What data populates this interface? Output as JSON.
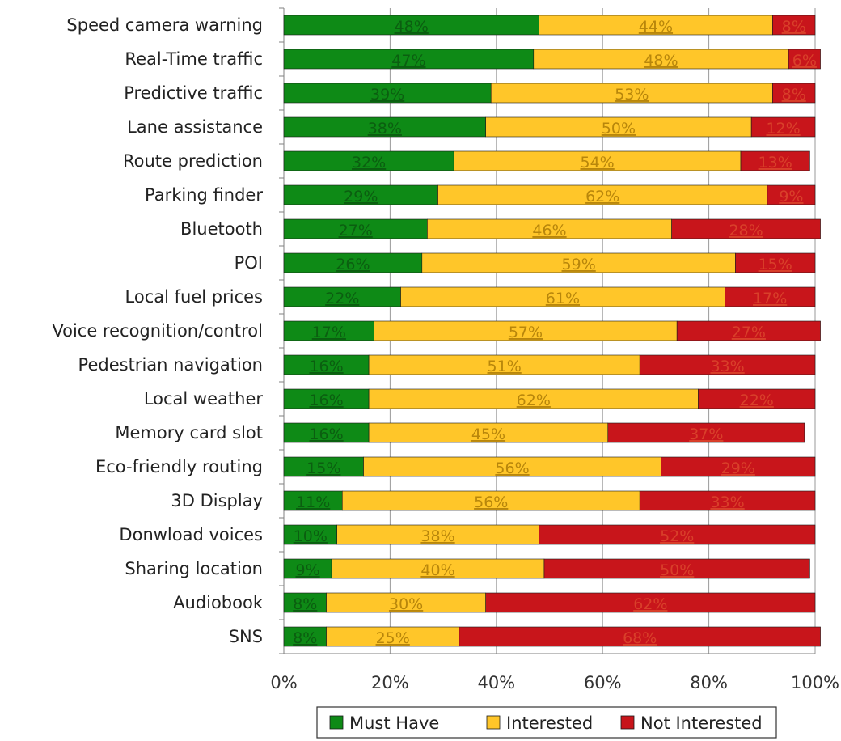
{
  "chart_data": {
    "type": "bar",
    "orientation": "horizontal",
    "stacked": "percent",
    "categories": [
      "Speed camera warning",
      "Real-Time traffic",
      "Predictive traffic",
      "Lane assistance",
      "Route prediction",
      "Parking finder",
      "Bluetooth",
      "POI",
      "Local fuel prices",
      "Voice recognition/control",
      "Pedestrian navigation",
      "Local weather",
      "Memory card slot",
      "Eco-friendly routing",
      "3D Display",
      "Donwload voices",
      "Sharing location",
      "Audiobook",
      "SNS"
    ],
    "series": [
      {
        "name": "Must Have",
        "color": "#0e8a16",
        "values": [
          48,
          47,
          39,
          38,
          32,
          29,
          27,
          26,
          22,
          17,
          16,
          16,
          16,
          15,
          11,
          10,
          9,
          8,
          8
        ],
        "labels": [
          "48%",
          "47%",
          "39%",
          "38%",
          "32%",
          "29%",
          "27%",
          "26%",
          "22%",
          "17%",
          "16%",
          "16%",
          "16%",
          "15%",
          "11%",
          "10%",
          "9%",
          "8%",
          "8%"
        ]
      },
      {
        "name": "Interested",
        "color": "#ffc629",
        "values": [
          44,
          48,
          53,
          50,
          54,
          62,
          46,
          59,
          61,
          57,
          51,
          62,
          45,
          56,
          56,
          38,
          40,
          30,
          25
        ],
        "labels": [
          "44%",
          "48%",
          "53%",
          "50%",
          "54%",
          "62%",
          "46%",
          "59%",
          "61%",
          "57%",
          "51%",
          "62%",
          "45%",
          "56%",
          "56%",
          "38%",
          "40%",
          "30%",
          "25%"
        ]
      },
      {
        "name": "Not Interested",
        "color": "#c8151b",
        "values": [
          8,
          6,
          8,
          12,
          13,
          9,
          28,
          15,
          17,
          27,
          33,
          22,
          37,
          29,
          33,
          52,
          50,
          62,
          68
        ],
        "labels": [
          "8%",
          "6%",
          "8%",
          "12%",
          "13%",
          "9%",
          "28%",
          "15%",
          "17%",
          "27%",
          "33%",
          "22%",
          "37%",
          "29%",
          "33%",
          "52%",
          "50%",
          "62%",
          "68%"
        ]
      }
    ],
    "xlim": [
      0,
      100
    ],
    "x_ticks": [
      "0%",
      "20%",
      "40%",
      "60%",
      "80%",
      "100%"
    ],
    "grid": true,
    "legend": "bottom"
  }
}
